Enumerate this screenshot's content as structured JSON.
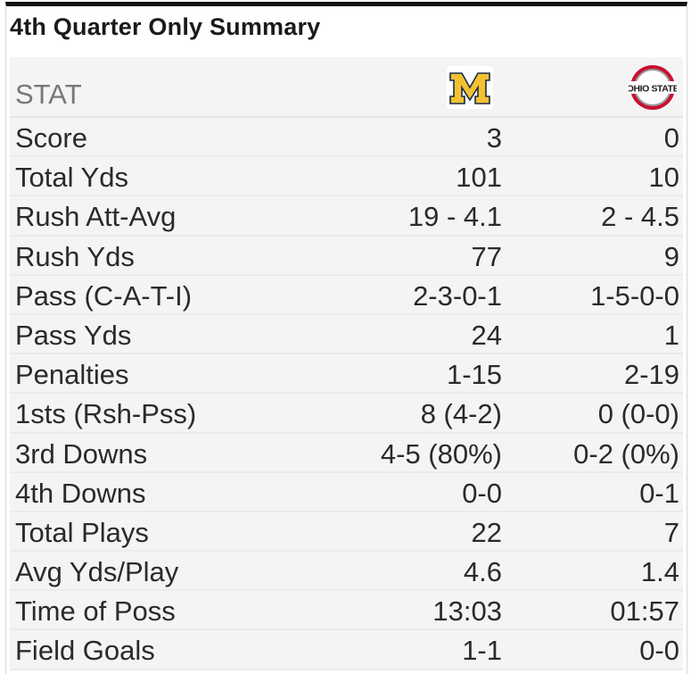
{
  "title": "4th Quarter Only Summary",
  "header": {
    "stat_label": "STAT",
    "team_a_logo": "michigan-block-m-logo",
    "team_b_logo": "ohio-state-logo",
    "team_b_logo_text": "OHIO STATE"
  },
  "colors": {
    "michigan_maize": "#f2c230",
    "michigan_blue": "#1b2a4a",
    "osu_scarlet": "#c8102e",
    "osu_gray": "#9a9a9a"
  },
  "rows": [
    {
      "stat": "Score",
      "team_a": "3",
      "team_b": "0"
    },
    {
      "stat": "Total Yds",
      "team_a": "101",
      "team_b": "10"
    },
    {
      "stat": "Rush Att-Avg",
      "team_a": "19 - 4.1",
      "team_b": "2 - 4.5"
    },
    {
      "stat": "Rush Yds",
      "team_a": "77",
      "team_b": "9"
    },
    {
      "stat": "Pass (C-A-T-I)",
      "team_a": "2-3-0-1",
      "team_b": "1-5-0-0"
    },
    {
      "stat": "Pass Yds",
      "team_a": "24",
      "team_b": "1"
    },
    {
      "stat": "Penalties",
      "team_a": "1-15",
      "team_b": "2-19"
    },
    {
      "stat": "1sts (Rsh-Pss)",
      "team_a": "8 (4-2)",
      "team_b": "0 (0-0)"
    },
    {
      "stat": "3rd Downs",
      "team_a": "4-5 (80%)",
      "team_b": "0-2 (0%)"
    },
    {
      "stat": "4th Downs",
      "team_a": "0-0",
      "team_b": "0-1"
    },
    {
      "stat": "Total Plays",
      "team_a": "22",
      "team_b": "7"
    },
    {
      "stat": "Avg Yds/Play",
      "team_a": "4.6",
      "team_b": "1.4"
    },
    {
      "stat": "Time of Poss",
      "team_a": "13:03",
      "team_b": "01:57"
    },
    {
      "stat": "Field Goals",
      "team_a": "1-1",
      "team_b": "0-0"
    }
  ]
}
